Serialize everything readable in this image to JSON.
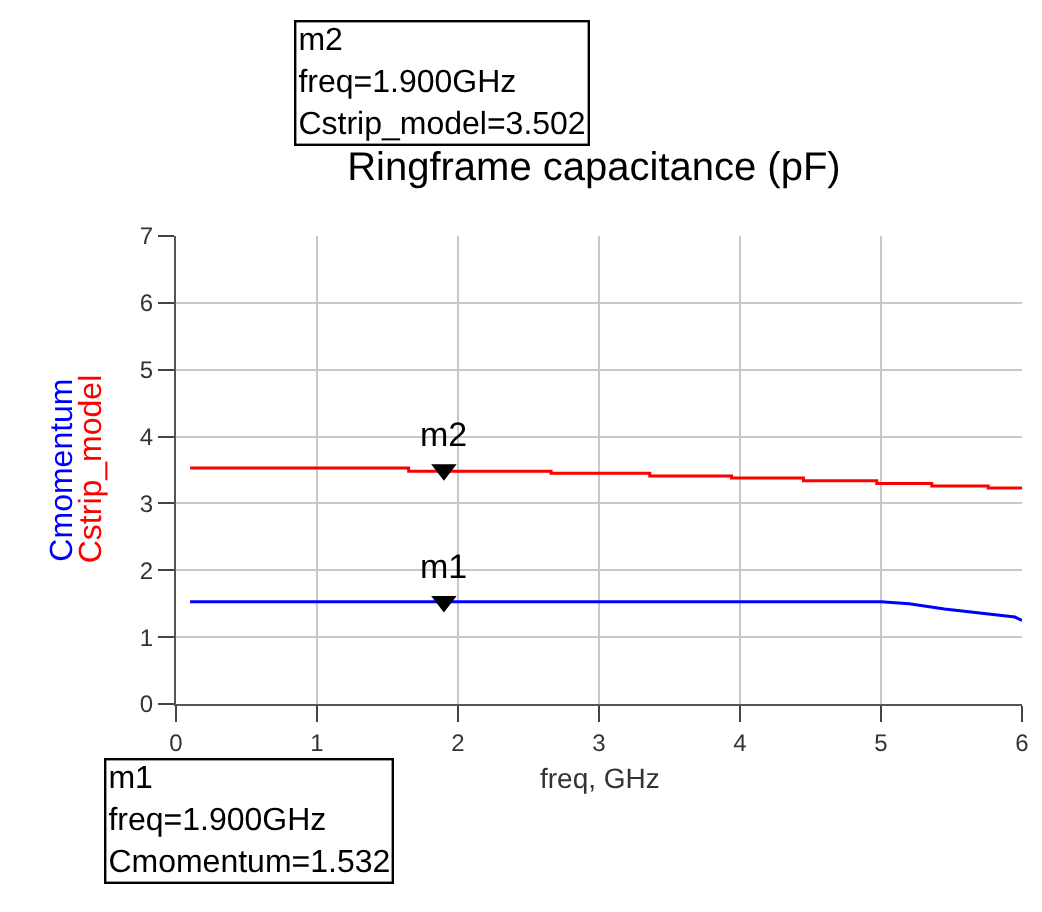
{
  "chart_data": {
    "type": "line",
    "title": "Ringframe capacitance (pF)",
    "xlabel": "freq, GHz",
    "series": [
      {
        "name": "Cmomentum",
        "color": "#0000ff",
        "x": [
          0.1,
          5.0,
          5.2,
          5.45,
          5.7,
          5.95,
          6.0
        ],
        "values": [
          1.53,
          1.53,
          1.5,
          1.42,
          1.36,
          1.3,
          1.25
        ]
      },
      {
        "name": "Cstrip_model",
        "type": "step",
        "color": "#ff0000",
        "x": [
          0.1,
          1.65,
          2.66,
          3.36,
          3.94,
          4.45,
          4.97,
          5.36,
          5.76,
          6.0
        ],
        "values": [
          3.53,
          3.48,
          3.45,
          3.41,
          3.38,
          3.34,
          3.3,
          3.26,
          3.23,
          3.23
        ]
      }
    ],
    "annotations": [
      "m2\nfreq=1.900GHz\nCstrip_model=3.502",
      "m1\nfreq=1.900GHz\nCmomentum=1.532",
      {
        "text": "m2",
        "x": 1.9,
        "y": 3.502
      },
      {
        "text": "m1",
        "x": 1.9,
        "y": 1.532
      }
    ],
    "xlim": [
      0,
      6
    ],
    "xticks": [
      0,
      1,
      2,
      3,
      4,
      5,
      6
    ],
    "ylim": [
      0,
      7
    ],
    "yticks": [
      0,
      1,
      2,
      3,
      4,
      5,
      6,
      7
    ],
    "grid": true,
    "legend": false
  }
}
